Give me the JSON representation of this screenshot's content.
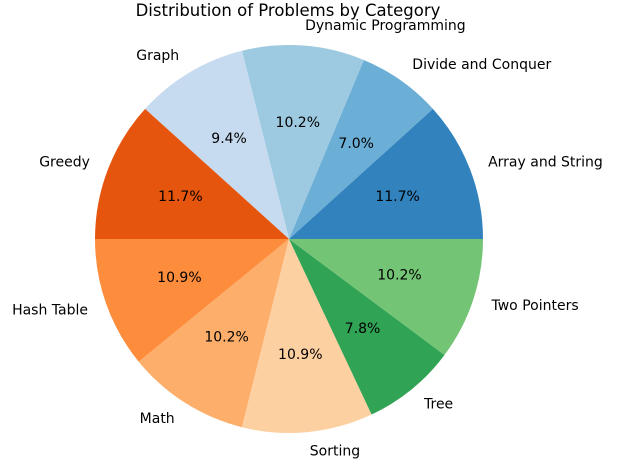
{
  "chart_data": {
    "type": "pie",
    "title": "Distribution of Problems by Category",
    "categories": [
      "Array and String",
      "Divide and Conquer",
      "Dynamic Programming",
      "Graph",
      "Greedy",
      "Hash Table",
      "Math",
      "Sorting",
      "Tree",
      "Two Pointers"
    ],
    "values": [
      11.7,
      7.0,
      10.2,
      9.4,
      11.7,
      10.9,
      10.2,
      10.9,
      7.8,
      10.2
    ],
    "percent_labels": [
      "11.7%",
      "7.0%",
      "10.2%",
      "9.4%",
      "11.7%",
      "10.9%",
      "10.2%",
      "10.9%",
      "7.8%",
      "10.2%"
    ],
    "colors": [
      "#3182bd",
      "#6baed6",
      "#9ecae1",
      "#c6dbef",
      "#e6550d",
      "#fd8d3c",
      "#fdae6b",
      "#fdd0a2",
      "#31a354",
      "#74c476"
    ],
    "start_angle_deg": 0,
    "direction": "counterclockwise",
    "legend": "none"
  }
}
